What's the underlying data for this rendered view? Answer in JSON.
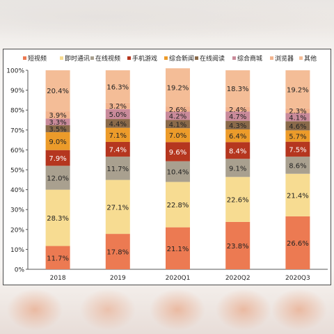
{
  "colors": {
    "series": [
      "#ec7a52",
      "#f7dc92",
      "#a9a08f",
      "#b5361f",
      "#ec9b2a",
      "#8a6a4a",
      "#c98a9a",
      "#f2b48f",
      "#f4bd97"
    ]
  },
  "chart_data": {
    "type": "bar",
    "stacked": true,
    "percent": true,
    "categories": [
      "2018",
      "2019",
      "2020Q1",
      "2020Q2",
      "2020Q3"
    ],
    "ylim": [
      0,
      100
    ],
    "yticks": [
      "0%",
      "10%",
      "20%",
      "30%",
      "40%",
      "50%",
      "60%",
      "70%",
      "80%",
      "90%",
      "100%"
    ],
    "legend_position": "top",
    "grid": false,
    "series": [
      {
        "name": "短视频",
        "values": [
          11.7,
          17.8,
          21.1,
          23.8,
          26.6
        ],
        "labels": [
          "11.7%",
          "17.8%",
          "21.1%",
          "23.8%",
          "26.6%"
        ]
      },
      {
        "name": "即时通讯",
        "values": [
          28.3,
          27.1,
          22.8,
          22.6,
          21.4
        ],
        "labels": [
          "28.3%",
          "27.1%",
          "22.8%",
          "22.6%",
          "21.4%"
        ]
      },
      {
        "name": "在线视频",
        "values": [
          12.0,
          11.7,
          10.4,
          9.1,
          8.6
        ],
        "labels": [
          "12.0%",
          "11.7%",
          "10.4%",
          "9.1%",
          "8.6%"
        ]
      },
      {
        "name": "手机游戏",
        "values": [
          7.9,
          7.4,
          9.6,
          8.4,
          7.5
        ],
        "labels": [
          "7.9%",
          "7.4%",
          "9.6%",
          "8.4%",
          "7.5%"
        ]
      },
      {
        "name": "综合新闻",
        "values": [
          9.0,
          7.1,
          7.0,
          6.4,
          5.7
        ],
        "labels": [
          "9.0%",
          "7.1%",
          "7.0%",
          "6.4%",
          "5.7%"
        ]
      },
      {
        "name": "在线阅读",
        "values": [
          3.5,
          4.4,
          4.1,
          4.3,
          4.6
        ],
        "labels": [
          "3.5%",
          "4.4%",
          "4.1%",
          "4.3%",
          "4.6%"
        ]
      },
      {
        "name": "综合商城",
        "values": [
          3.3,
          5.0,
          4.2,
          4.7,
          4.1
        ],
        "labels": [
          "3.3%",
          "5.0%",
          "4.2%",
          "4.7%",
          "4.1%"
        ]
      },
      {
        "name": "浏览器",
        "values": [
          3.9,
          3.2,
          2.6,
          2.4,
          2.3
        ],
        "labels": [
          "3.9%",
          "3.2%",
          "2.6%",
          "2.4%",
          "2.3%"
        ]
      },
      {
        "name": "其他",
        "values": [
          20.4,
          16.3,
          19.2,
          18.3,
          19.2
        ],
        "labels": [
          "20.4%",
          "16.3%",
          "19.2%",
          "18.3%",
          "19.2%"
        ]
      }
    ]
  }
}
